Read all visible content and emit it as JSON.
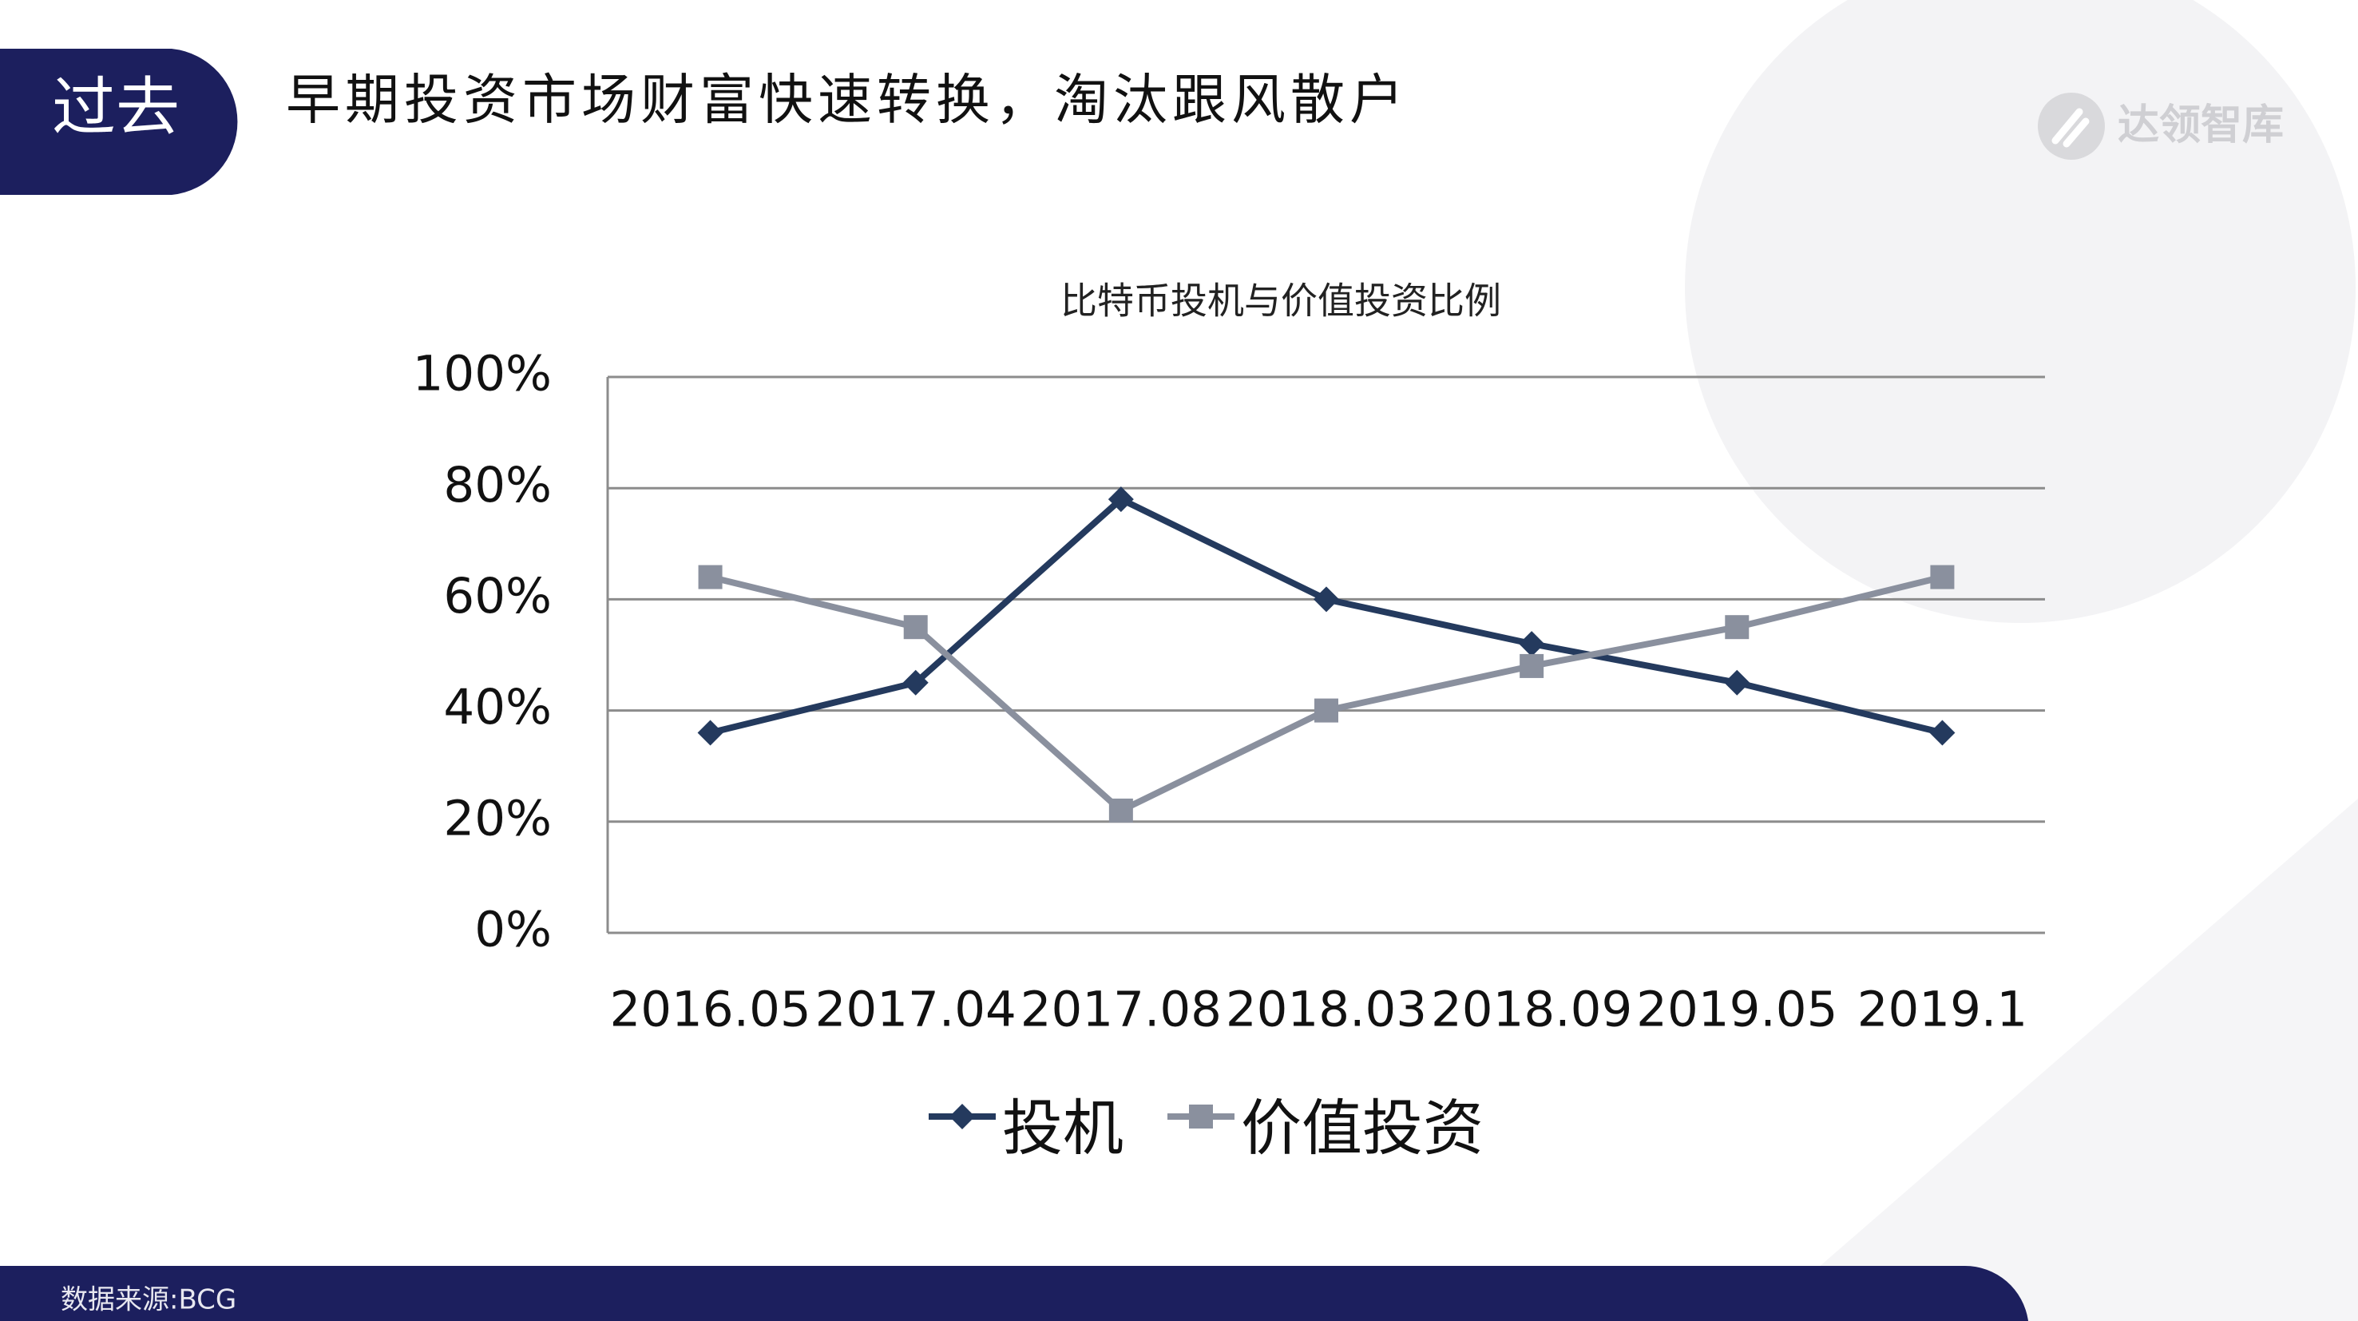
{
  "header": {
    "tag": "过去",
    "title": "早期投资市场财富快速转换，淘汰跟风散户",
    "logo": "达领智库"
  },
  "footer": {
    "source": "数据来源:BCG"
  },
  "chart_data": {
    "type": "line",
    "title": "比特币投机与价值投资比例",
    "categories": [
      "2016.05",
      "2017.04",
      "2017.08",
      "2018.03",
      "2018.09",
      "2019.05",
      "2019.1"
    ],
    "series": [
      {
        "name": "投机",
        "color": "#243a5e",
        "marker": "diamond",
        "values": [
          36,
          45,
          78,
          60,
          52,
          45,
          36
        ]
      },
      {
        "name": "价值投资",
        "color": "#8a909e",
        "marker": "square",
        "values": [
          64,
          55,
          22,
          40,
          48,
          55,
          64
        ]
      }
    ],
    "ylim": [
      0,
      100
    ],
    "yticks": [
      {
        "value": 0,
        "label": "0%"
      },
      {
        "value": 20,
        "label": "20%"
      },
      {
        "value": 40,
        "label": "40%"
      },
      {
        "value": 60,
        "label": "60%"
      },
      {
        "value": 80,
        "label": "80%"
      },
      {
        "value": 100,
        "label": "100%"
      }
    ],
    "grid": true,
    "legend": "bottom"
  }
}
